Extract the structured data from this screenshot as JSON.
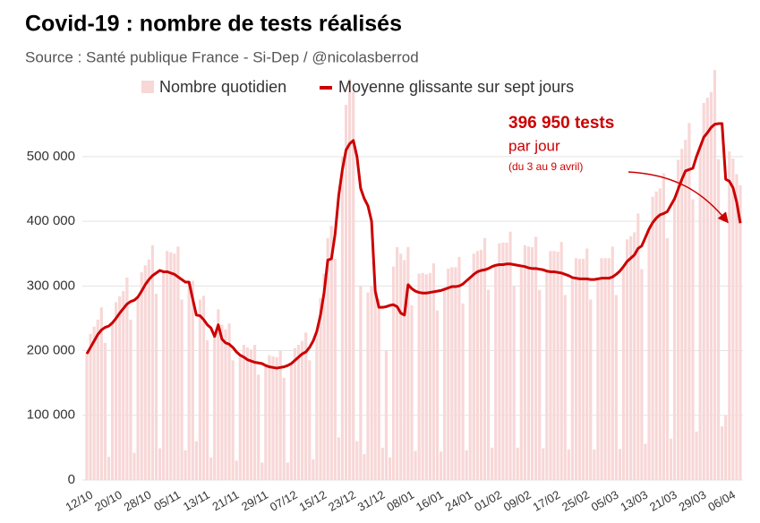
{
  "chart_data": {
    "type": "combo",
    "title": "Covid-19 : nombre de tests réalisés",
    "subtitle": "Source : Santé publique France - Si-Dep / @nicolasberrod",
    "legend_position": "top",
    "grid": true,
    "ylim": [
      0,
      720000
    ],
    "yticks": [
      {
        "value": 0,
        "label": "0"
      },
      {
        "value": 100000,
        "label": "100 000"
      },
      {
        "value": 200000,
        "label": "200 000"
      },
      {
        "value": 300000,
        "label": "300 000"
      },
      {
        "value": 400000,
        "label": "400 000"
      },
      {
        "value": 500000,
        "label": "500 000"
      }
    ],
    "categories": [
      "12/10",
      null,
      null,
      null,
      null,
      null,
      null,
      null,
      "20/10",
      null,
      null,
      null,
      null,
      null,
      null,
      null,
      "28/10",
      null,
      null,
      null,
      null,
      null,
      null,
      null,
      "05/11",
      null,
      null,
      null,
      null,
      null,
      null,
      null,
      "13/11",
      null,
      null,
      null,
      null,
      null,
      null,
      null,
      "21/11",
      null,
      null,
      null,
      null,
      null,
      null,
      null,
      "29/11",
      null,
      null,
      null,
      null,
      null,
      null,
      null,
      "07/12",
      null,
      null,
      null,
      null,
      null,
      null,
      null,
      "15/12",
      null,
      null,
      null,
      null,
      null,
      null,
      null,
      "23/12",
      null,
      null,
      null,
      null,
      null,
      null,
      null,
      "31/12",
      null,
      null,
      null,
      null,
      null,
      null,
      null,
      "08/01",
      null,
      null,
      null,
      null,
      null,
      null,
      null,
      "16/01",
      null,
      null,
      null,
      null,
      null,
      null,
      null,
      "24/01",
      null,
      null,
      null,
      null,
      null,
      null,
      null,
      "01/02",
      null,
      null,
      null,
      null,
      null,
      null,
      null,
      "09/02",
      null,
      null,
      null,
      null,
      null,
      null,
      null,
      "17/02",
      null,
      null,
      null,
      null,
      null,
      null,
      null,
      "25/02",
      null,
      null,
      null,
      null,
      null,
      null,
      null,
      "05/03",
      null,
      null,
      null,
      null,
      null,
      null,
      null,
      "13/03",
      null,
      null,
      null,
      null,
      null,
      null,
      null,
      "21/03",
      null,
      null,
      null,
      null,
      null,
      null,
      null,
      "29/03",
      null,
      null,
      null,
      null,
      null,
      null,
      null,
      "06/04",
      null,
      null,
      null
    ],
    "series": [
      {
        "name": "Nombre quotidien",
        "type": "bar",
        "color": "#f8d7d7",
        "values": [
          195000,
          226000,
          237000,
          248000,
          267000,
          212000,
          36000,
          243000,
          275000,
          284000,
          292000,
          313000,
          248000,
          42000,
          283000,
          321000,
          332000,
          341000,
          363000,
          288000,
          49000,
          322000,
          354000,
          352000,
          350000,
          361000,
          279000,
          46000,
          306000,
          308000,
          60000,
          279000,
          285000,
          216000,
          35000,
          222000,
          264000,
          240000,
          233000,
          242000,
          185000,
          30000,
          193000,
          209000,
          205000,
          202000,
          209000,
          163000,
          27000,
          177000,
          193000,
          191000,
          190000,
          200000,
          158000,
          27000,
          180000,
          204000,
          209000,
          215000,
          228000,
          185000,
          32000,
          230000,
          281000,
          319000,
          374000,
          393000,
          342000,
          66000,
          500000,
          580000,
          620000,
          600000,
          60000,
          300000,
          40000,
          290000,
          300000,
          290000,
          280000,
          50000,
          200000,
          35000,
          330000,
          360000,
          350000,
          340000,
          360000,
          270000,
          45000,
          319000,
          320000,
          318000,
          320000,
          335000,
          262000,
          44000,
          295000,
          327000,
          329000,
          329000,
          345000,
          273000,
          46000,
          313000,
          350000,
          354000,
          356000,
          374000,
          294000,
          50000,
          332000,
          366000,
          367000,
          367000,
          384000,
          300000,
          50000,
          331000,
          363000,
          361000,
          360000,
          376000,
          294000,
          49000,
          323000,
          354000,
          354000,
          353000,
          368000,
          286000,
          47000,
          313000,
          343000,
          342000,
          342000,
          358000,
          279000,
          47000,
          311000,
          343000,
          343000,
          343000,
          361000,
          286000,
          48000,
          330000,
          372000,
          377000,
          383000,
          412000,
          326000,
          56000,
          388000,
          438000,
          446000,
          451000,
          474000,
          374000,
          64000,
          435000,
          495000,
          512000,
          526000,
          552000,
          434000,
          75000,
          515000,
          583000,
          591000,
          600000,
          634000,
          496000,
          83000,
          100000,
          508000,
          497000,
          473000,
          456000
        ]
      },
      {
        "name": "Moyenne glissante sur sept jours",
        "type": "line",
        "color": "#cc0000",
        "values": [
          195000,
          205000,
          215000,
          225000,
          232000,
          236000,
          238000,
          243000,
          250000,
          258000,
          265000,
          272000,
          276000,
          278000,
          283000,
          292000,
          302000,
          310000,
          316000,
          320000,
          324000,
          322000,
          322000,
          320000,
          318000,
          314000,
          310000,
          306000,
          306000,
          280000,
          255000,
          254000,
          248000,
          240000,
          235000,
          222000,
          240000,
          218000,
          212000,
          210000,
          205000,
          198000,
          193000,
          190000,
          186000,
          184000,
          182000,
          181000,
          180000,
          177000,
          175000,
          174000,
          173000,
          174000,
          175000,
          177000,
          180000,
          185000,
          190000,
          195000,
          198000,
          205000,
          215000,
          230000,
          255000,
          290000,
          340000,
          342000,
          380000,
          440000,
          480000,
          510000,
          520000,
          525000,
          500000,
          451000,
          435000,
          424000,
          400000,
          292000,
          267000,
          267000,
          268000,
          270000,
          271000,
          268000,
          258000,
          255000,
          302000,
          296000,
          292000,
          290000,
          289000,
          289000,
          290000,
          291000,
          292000,
          293000,
          295000,
          297000,
          299000,
          299000,
          300000,
          303000,
          308000,
          313000,
          318000,
          322000,
          324000,
          325000,
          327000,
          330000,
          332000,
          333000,
          333000,
          334000,
          334000,
          333000,
          332000,
          331000,
          330000,
          328000,
          327000,
          327000,
          326000,
          325000,
          323000,
          322000,
          322000,
          321000,
          320000,
          318000,
          316000,
          313000,
          312000,
          311000,
          311000,
          311000,
          310000,
          310000,
          311000,
          312000,
          312000,
          312000,
          314000,
          318000,
          323000,
          330000,
          338000,
          343000,
          348000,
          358000,
          362000,
          375000,
          388000,
          398000,
          405000,
          410000,
          412000,
          415000,
          425000,
          435000,
          450000,
          465000,
          478000,
          480000,
          482000,
          500000,
          515000,
          530000,
          537000,
          545000,
          550000,
          551000,
          551000,
          465000,
          462000,
          452000,
          430000,
          397000
        ]
      }
    ],
    "annotations": [
      "396 950 tests",
      "par jour",
      "(du 3 au 9 avril)"
    ]
  }
}
